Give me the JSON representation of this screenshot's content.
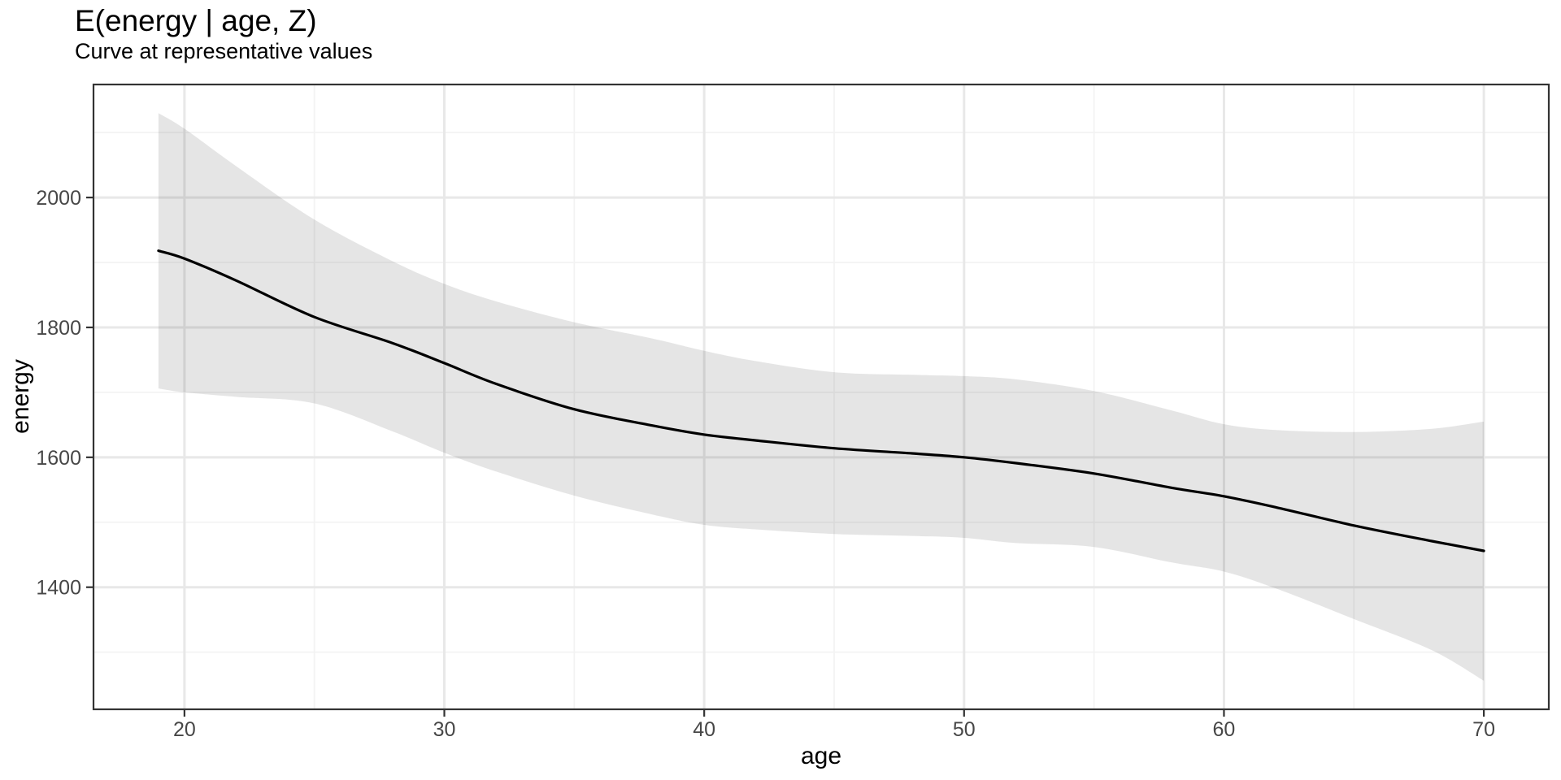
{
  "page": {
    "background": "#ffffff"
  },
  "chart_data": {
    "type": "line",
    "title": "E(energy | age, Z)",
    "subtitle": "Curve at representative values",
    "xlabel": "age",
    "ylabel": "energy",
    "legend": "none",
    "grid": true,
    "xlim": [
      16.5,
      72.5
    ],
    "ylim": [
      1212,
      2174
    ],
    "x_ticks_major": [
      20,
      30,
      40,
      50,
      60,
      70
    ],
    "x_ticks_minor": [
      25,
      35,
      45,
      55,
      65
    ],
    "y_ticks_major": [
      2000,
      1800,
      1600,
      1400
    ],
    "y_ticks_minor": [
      2100,
      1900,
      1700,
      1500,
      1300
    ],
    "x": [
      19,
      20,
      22,
      25,
      28,
      30,
      32,
      35,
      38,
      40,
      42,
      45,
      48,
      50,
      52,
      55,
      58,
      60,
      62,
      65,
      68,
      70
    ],
    "series": [
      {
        "name": "conditional-mean-fit",
        "type": "line",
        "color": "#000000",
        "values": [
          1918,
          1906,
          1872,
          1816,
          1776,
          1745,
          1713,
          1674,
          1649,
          1635,
          1626,
          1614,
          1606,
          1600,
          1591,
          1575,
          1553,
          1540,
          1523,
          1495,
          1471,
          1456
        ]
      }
    ],
    "confidence_band": {
      "name": "confidence-ribbon",
      "fill": "rgba(0,0,0,0.10)",
      "upper": [
        2130,
        2106,
        2048,
        1966,
        1902,
        1867,
        1840,
        1808,
        1783,
        1764,
        1748,
        1731,
        1727,
        1725,
        1720,
        1702,
        1672,
        1651,
        1642,
        1639,
        1644,
        1655
      ],
      "lower": [
        1706,
        1700,
        1693,
        1683,
        1640,
        1607,
        1578,
        1541,
        1512,
        1496,
        1489,
        1482,
        1479,
        1476,
        1468,
        1462,
        1438,
        1424,
        1398,
        1351,
        1303,
        1256
      ]
    }
  },
  "style": {
    "panel_background": "#ffffff",
    "panel_border_color": "#333333",
    "grid_major_color": "#e8e8e8",
    "grid_minor_color": "#f3f3f3",
    "tick_mark_color": "#333333",
    "tick_label_color": "#474747",
    "line_color": "#000000",
    "ribbon_fill": "rgba(0,0,0,0.10)"
  }
}
